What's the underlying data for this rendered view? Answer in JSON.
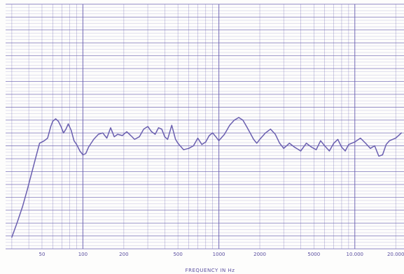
{
  "chart_data": {
    "type": "line",
    "title": "",
    "xlabel": "FREQUENCY IN Hz",
    "ylabel": "",
    "x_scale": "log",
    "xlim": [
      27,
      23000
    ],
    "ylim": [
      0,
      19
    ],
    "grid": true,
    "color": "#6a5fb0",
    "x_tick_labels": [
      {
        "value": 50,
        "label": "50"
      },
      {
        "value": 100,
        "label": "100"
      },
      {
        "value": 200,
        "label": "200"
      },
      {
        "value": 500,
        "label": "500"
      },
      {
        "value": 1000,
        "label": "1000"
      },
      {
        "value": 2000,
        "label": "2000"
      },
      {
        "value": 5000,
        "label": "5000"
      },
      {
        "value": 10000,
        "label": "10.000"
      },
      {
        "value": 20000,
        "label": "20.000"
      }
    ],
    "series": [
      {
        "points": [
          [
            30,
            0.9
          ],
          [
            33,
            2.1
          ],
          [
            36,
            3.3
          ],
          [
            39,
            4.6
          ],
          [
            42,
            5.9
          ],
          [
            45,
            7.1
          ],
          [
            48,
            8.2
          ],
          [
            52,
            8.4
          ],
          [
            55,
            8.6
          ],
          [
            58,
            9.5
          ],
          [
            60,
            9.9
          ],
          [
            63,
            10.1
          ],
          [
            66,
            9.9
          ],
          [
            69,
            9.5
          ],
          [
            72,
            9.0
          ],
          [
            75,
            9.3
          ],
          [
            78,
            9.7
          ],
          [
            82,
            9.2
          ],
          [
            86,
            8.4
          ],
          [
            90,
            8.1
          ],
          [
            95,
            7.6
          ],
          [
            100,
            7.3
          ],
          [
            105,
            7.4
          ],
          [
            110,
            7.9
          ],
          [
            120,
            8.5
          ],
          [
            130,
            8.9
          ],
          [
            140,
            9.0
          ],
          [
            150,
            8.6
          ],
          [
            160,
            9.4
          ],
          [
            170,
            8.7
          ],
          [
            180,
            8.9
          ],
          [
            195,
            8.8
          ],
          [
            210,
            9.1
          ],
          [
            225,
            8.8
          ],
          [
            240,
            8.5
          ],
          [
            260,
            8.7
          ],
          [
            280,
            9.3
          ],
          [
            300,
            9.5
          ],
          [
            320,
            9.1
          ],
          [
            340,
            8.9
          ],
          [
            360,
            9.4
          ],
          [
            380,
            9.3
          ],
          [
            400,
            8.7
          ],
          [
            420,
            8.5
          ],
          [
            450,
            9.6
          ],
          [
            480,
            8.5
          ],
          [
            500,
            8.2
          ],
          [
            550,
            7.7
          ],
          [
            600,
            7.8
          ],
          [
            650,
            8.0
          ],
          [
            700,
            8.6
          ],
          [
            750,
            8.1
          ],
          [
            800,
            8.3
          ],
          [
            850,
            8.8
          ],
          [
            900,
            9.0
          ],
          [
            950,
            8.7
          ],
          [
            1000,
            8.4
          ],
          [
            1100,
            8.9
          ],
          [
            1200,
            9.6
          ],
          [
            1300,
            10.0
          ],
          [
            1400,
            10.2
          ],
          [
            1500,
            10.0
          ],
          [
            1600,
            9.5
          ],
          [
            1700,
            9.0
          ],
          [
            1800,
            8.5
          ],
          [
            1900,
            8.2
          ],
          [
            2000,
            8.5
          ],
          [
            2200,
            9.0
          ],
          [
            2400,
            9.3
          ],
          [
            2600,
            8.9
          ],
          [
            2800,
            8.2
          ],
          [
            3000,
            7.8
          ],
          [
            3300,
            8.2
          ],
          [
            3600,
            7.9
          ],
          [
            4000,
            7.6
          ],
          [
            4400,
            8.2
          ],
          [
            4800,
            7.9
          ],
          [
            5200,
            7.7
          ],
          [
            5600,
            8.4
          ],
          [
            6000,
            8.0
          ],
          [
            6500,
            7.6
          ],
          [
            7000,
            8.2
          ],
          [
            7500,
            8.5
          ],
          [
            8000,
            7.9
          ],
          [
            8500,
            7.6
          ],
          [
            9000,
            8.1
          ],
          [
            10000,
            8.3
          ],
          [
            11000,
            8.6
          ],
          [
            12000,
            8.2
          ],
          [
            13000,
            7.8
          ],
          [
            14000,
            8.0
          ],
          [
            15000,
            7.2
          ],
          [
            16000,
            7.3
          ],
          [
            17000,
            8.1
          ],
          [
            18000,
            8.4
          ],
          [
            20000,
            8.6
          ],
          [
            22000,
            9.0
          ]
        ]
      }
    ]
  }
}
